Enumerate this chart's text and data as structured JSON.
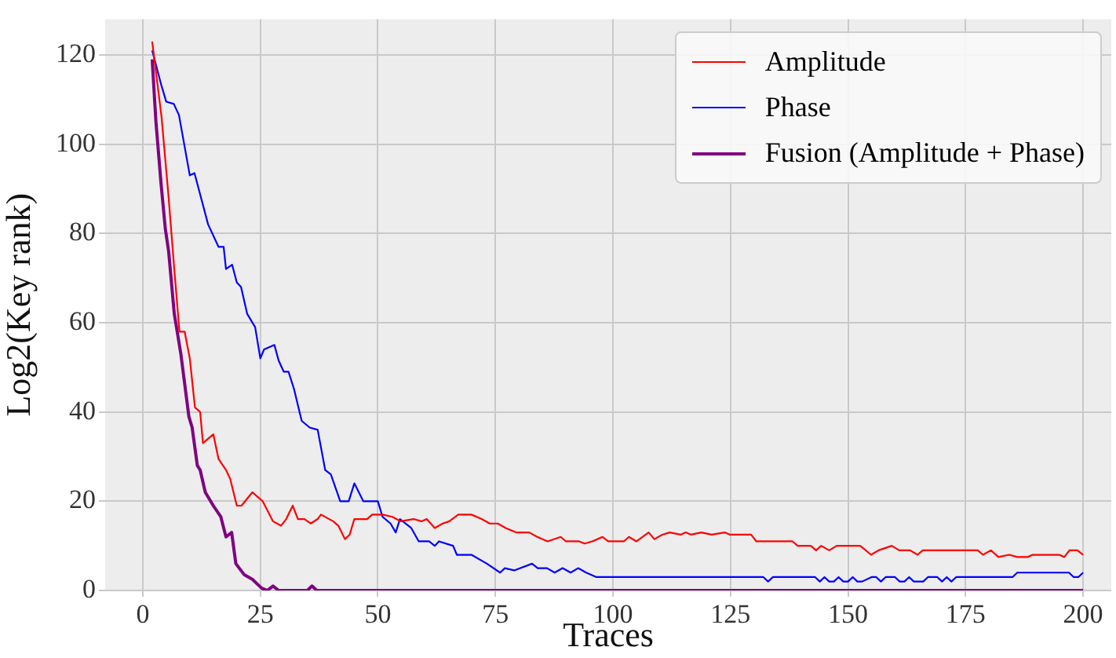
{
  "chart_data": {
    "type": "line",
    "xlabel": "Traces",
    "ylabel": "Log2(Key rank)",
    "xlim": [
      -8,
      206
    ],
    "ylim": [
      0,
      128
    ],
    "xticks": [
      0,
      25,
      50,
      75,
      100,
      125,
      150,
      175,
      200
    ],
    "yticks": [
      0,
      20,
      40,
      60,
      80,
      100,
      120
    ],
    "grid": true,
    "legend": "top right",
    "marker": "none",
    "line_style": "solid",
    "series": [
      {
        "name": "Amplitude",
        "color": "#ff0000",
        "x": [
          2,
          4,
          5.5,
          6.7,
          7.8,
          8.9,
          10,
          11.1,
          12.2,
          12.8,
          15,
          16.1,
          17.7,
          18.6,
          20,
          21,
          23.3,
          25.5,
          27.7,
          29.4,
          30.5,
          31.9,
          33,
          34.4,
          35.7,
          37.2,
          37.9,
          40.5,
          41.6,
          43,
          44,
          45,
          47.7,
          48.8,
          51,
          53.1,
          54.8,
          57.6,
          59.3,
          60.4,
          62.1,
          63.8,
          65.2,
          67.1,
          69.9,
          72.1,
          73.8,
          75.5,
          77.2,
          79.4,
          82.2,
          83.9,
          86.1,
          88.9,
          90,
          92.8,
          94,
          95.6,
          97.8,
          99,
          102.3,
          103.4,
          105,
          107.6,
          108.8,
          110.5,
          112.1,
          114.4,
          115.5,
          116.6,
          118.8,
          121,
          123.8,
          124.9,
          129.4,
          130.5,
          138.2,
          139.3,
          142.1,
          143.2,
          144.3,
          146,
          147.6,
          152.6,
          154.9,
          156.5,
          159.3,
          160.9,
          163.2,
          164.8,
          165.9,
          177.6,
          178.7,
          180.4,
          182,
          184.3,
          186,
          188.2,
          189.3,
          194.9,
          196,
          197.1,
          198.8,
          200
        ],
        "values": [
          123,
          106,
          88,
          72,
          58,
          58,
          52,
          41,
          40,
          33,
          35,
          29.5,
          27,
          25,
          19,
          19,
          22,
          20,
          15.5,
          14.5,
          16,
          19,
          16,
          16,
          15,
          16,
          17,
          15.5,
          14.5,
          11.5,
          12.5,
          16,
          16,
          17,
          17,
          16.5,
          15.5,
          16,
          15.5,
          16,
          14,
          15,
          15.5,
          17,
          17,
          16,
          15,
          15,
          14,
          13,
          13,
          12,
          11,
          12,
          11,
          11,
          10.5,
          11,
          12,
          11,
          11,
          12,
          11,
          13,
          11.5,
          12.5,
          13,
          12.5,
          13,
          12.5,
          13,
          12.5,
          13,
          12.5,
          12.5,
          11,
          11,
          10,
          10,
          9,
          10,
          9,
          10,
          10,
          8,
          9,
          10,
          9,
          9,
          8,
          9,
          9,
          8,
          9,
          7.5,
          8,
          7.5,
          7.5,
          8,
          8,
          7.5,
          9,
          9,
          8
        ]
      },
      {
        "name": "Phase",
        "color": "#0000ff",
        "x": [
          2,
          4,
          5,
          6.6,
          7.7,
          10,
          11,
          13.9,
          16.1,
          17.2,
          17.7,
          19,
          20,
          20.9,
          22.2,
          23.9,
          25,
          25.8,
          28,
          28.9,
          30,
          31,
          32.2,
          33.8,
          35.5,
          37.2,
          38.8,
          40,
          42,
          43.8,
          45,
          46.9,
          50,
          51,
          52.7,
          53.8,
          54.7,
          57.1,
          58.7,
          60.9,
          62.1,
          63,
          66,
          66.8,
          69.9,
          73.2,
          76,
          77,
          79,
          82.8,
          84,
          86,
          87.6,
          89.3,
          91,
          92.6,
          94.3,
          96.5,
          132,
          133,
          134,
          143,
          144,
          145,
          146,
          147,
          148,
          149,
          150,
          151,
          152,
          153,
          155,
          156,
          157,
          158,
          160,
          161,
          162,
          163,
          164,
          165,
          166,
          167,
          169,
          170,
          171,
          172,
          173,
          174,
          175,
          185,
          186,
          197,
          198,
          199,
          200
        ],
        "values": [
          121,
          113,
          109.5,
          109,
          106.5,
          93,
          93.5,
          82,
          77,
          77,
          72,
          73,
          69,
          68,
          62,
          59,
          52,
          54,
          55,
          51.5,
          49,
          49,
          45,
          38,
          36.5,
          36,
          27,
          26,
          20,
          20,
          24,
          20,
          20,
          16.5,
          15,
          13,
          16,
          14,
          11,
          11,
          10,
          11,
          10,
          8,
          8,
          6,
          4,
          5,
          4.5,
          6,
          5,
          5,
          4,
          5,
          4,
          5,
          4,
          3,
          3,
          2,
          3,
          3,
          2,
          3,
          2,
          2,
          3,
          2,
          2,
          3,
          2,
          2,
          3,
          3,
          2,
          3,
          3,
          2,
          2,
          3,
          2,
          2,
          2,
          3,
          3,
          2,
          3,
          2,
          3,
          3,
          3,
          3,
          4,
          4,
          3,
          3,
          4
        ]
      },
      {
        "name": "Fusion (Amplitude + Phase)",
        "color": "#800080",
        "x": [
          2,
          2.8,
          3.9,
          4.8,
          5.5,
          6.7,
          8.1,
          9.8,
          10.5,
          11.6,
          12.2,
          13.3,
          15,
          16.6,
          17.7,
          18.9,
          19.8,
          21.6,
          23.3,
          25.3,
          26.5,
          27.7,
          28.9,
          35,
          36,
          37,
          200
        ],
        "values": [
          119,
          105,
          91,
          81,
          76,
          62,
          53,
          39,
          36.5,
          28,
          27,
          22,
          19,
          16.5,
          12,
          13,
          6,
          3.5,
          2.5,
          0.5,
          0,
          1,
          0,
          0,
          1,
          0,
          0
        ]
      }
    ]
  }
}
